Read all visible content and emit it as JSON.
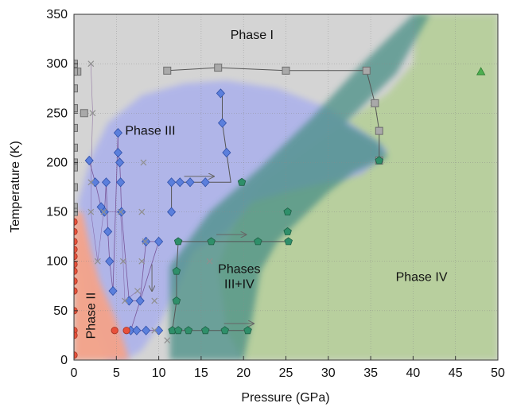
{
  "chart_data": {
    "type": "scatter",
    "xlabel": "Pressure (GPa)",
    "ylabel": "Temperature (K)",
    "xlim": [
      0,
      50
    ],
    "ylim": [
      0,
      350
    ],
    "xticks": [
      "0",
      "5",
      "10",
      "15",
      "20",
      "25",
      "30",
      "35",
      "40",
      "45",
      "50"
    ],
    "yticks": [
      "0",
      "50",
      "100",
      "150",
      "200",
      "250",
      "300",
      "350"
    ],
    "grid": true,
    "regions": [
      {
        "name": "Phase I",
        "color": "#d3d3d3",
        "label_x": 21,
        "label_y": 325
      },
      {
        "name": "Phase III",
        "color": "#aab0ec",
        "label_x": 9,
        "label_y": 228
      },
      {
        "name": "Phase II",
        "color": "#f4a38a",
        "label_x": 2.5,
        "label_y": 45
      },
      {
        "name": "Phases\nIII+IV",
        "color": "#4a8f86",
        "label_x": 19.5,
        "label_y": 88
      },
      {
        "name": "Phase IV",
        "color": "#b7cf9c",
        "label_x": 41,
        "label_y": 80
      }
    ],
    "arrows": [
      {
        "x1": 13,
        "y1": 186,
        "x2": 16.5,
        "y2": 186
      },
      {
        "x1": 16.8,
        "y1": 127,
        "x2": 20.3,
        "y2": 127
      },
      {
        "x1": 17.7,
        "y1": 37,
        "x2": 21.2,
        "y2": 37
      },
      {
        "x1": 9.2,
        "y1": 97,
        "x2": 9.2,
        "y2": 70
      }
    ],
    "series": [
      {
        "marker": "square-gray",
        "color": "#999999",
        "points": [
          [
            0,
            300
          ],
          [
            0.4,
            292
          ],
          [
            0,
            292
          ],
          [
            0,
            275
          ],
          [
            0,
            255
          ],
          [
            0,
            235
          ],
          [
            0,
            215
          ],
          [
            0,
            200
          ],
          [
            0,
            195
          ],
          [
            0,
            175
          ],
          [
            0,
            155
          ],
          [
            0,
            150
          ],
          [
            1.2,
            250
          ],
          [
            11,
            293
          ],
          [
            17,
            296
          ],
          [
            25,
            293
          ],
          [
            34.5,
            293
          ],
          [
            35.5,
            260
          ],
          [
            36,
            232
          ],
          [
            36,
            202
          ]
        ],
        "path": [
          [
            11,
            293
          ],
          [
            17,
            296
          ],
          [
            25,
            293
          ],
          [
            34.5,
            293
          ],
          [
            35.5,
            260
          ],
          [
            36,
            232
          ],
          [
            36,
            202
          ]
        ]
      },
      {
        "marker": "diamond-blue",
        "color": "#5b7fdc",
        "points": [
          [
            1.8,
            202
          ],
          [
            2.5,
            180
          ],
          [
            3.2,
            155
          ],
          [
            3.6,
            150
          ],
          [
            3.8,
            180
          ],
          [
            4,
            130
          ],
          [
            4.2,
            100
          ],
          [
            4.6,
            70
          ],
          [
            5.2,
            230
          ],
          [
            5.2,
            210
          ],
          [
            5.4,
            200
          ],
          [
            5.5,
            180
          ],
          [
            5.6,
            150
          ],
          [
            6.5,
            60
          ],
          [
            7.8,
            60
          ],
          [
            8.5,
            120
          ],
          [
            10,
            120
          ],
          [
            11.5,
            180
          ],
          [
            12.5,
            180
          ],
          [
            13.7,
            180
          ],
          [
            15.5,
            180
          ],
          [
            17.3,
            270
          ],
          [
            17.5,
            240
          ],
          [
            18,
            210
          ],
          [
            11.5,
            150
          ],
          [
            6.7,
            30
          ],
          [
            7.4,
            30
          ],
          [
            8.5,
            30
          ],
          [
            10,
            30
          ]
        ],
        "path": [
          [
            17.5,
            270
          ],
          [
            17.5,
            240
          ],
          [
            18,
            210
          ],
          [
            18.5,
            180
          ],
          [
            15.5,
            180
          ],
          [
            13.7,
            180
          ],
          [
            12.5,
            180
          ],
          [
            11.5,
            180
          ],
          [
            11.5,
            150
          ]
        ]
      },
      {
        "marker": "pentagon-teal",
        "color": "#2f8f6a",
        "points": [
          [
            19.8,
            180
          ],
          [
            25.2,
            150
          ],
          [
            25.2,
            130
          ],
          [
            25.3,
            120
          ],
          [
            21.7,
            120
          ],
          [
            16.2,
            120
          ],
          [
            12.3,
            120
          ],
          [
            12.1,
            90
          ],
          [
            12.1,
            60
          ],
          [
            11.6,
            30
          ],
          [
            12.3,
            30
          ],
          [
            13.5,
            30
          ],
          [
            15.5,
            30
          ],
          [
            17.8,
            30
          ],
          [
            20.5,
            30
          ],
          [
            36,
            202
          ]
        ],
        "path": [
          [
            25.3,
            120
          ],
          [
            21.7,
            120
          ],
          [
            16.2,
            120
          ],
          [
            12.3,
            120
          ],
          [
            12.1,
            90
          ],
          [
            12.1,
            60
          ],
          [
            11.6,
            30
          ],
          [
            20.5,
            30
          ]
        ]
      },
      {
        "marker": "cross-gray",
        "color": "#999999",
        "points": [
          [
            2,
            300
          ],
          [
            2.2,
            250
          ],
          [
            2,
            180
          ],
          [
            2,
            150
          ],
          [
            2.8,
            100
          ],
          [
            3.5,
            150
          ],
          [
            5.5,
            150
          ],
          [
            5.8,
            100
          ],
          [
            6,
            60
          ],
          [
            7.5,
            70
          ],
          [
            8,
            150
          ],
          [
            8,
            100
          ],
          [
            8.2,
            200
          ],
          [
            8.4,
            120
          ],
          [
            9.5,
            60
          ],
          [
            9.5,
            30
          ],
          [
            11,
            20
          ],
          [
            16,
            100
          ]
        ]
      },
      {
        "marker": "circle-red",
        "color": "#e8503a",
        "points": [
          [
            0,
            140
          ],
          [
            0,
            130
          ],
          [
            0,
            120
          ],
          [
            0,
            112
          ],
          [
            0,
            105
          ],
          [
            0,
            97
          ],
          [
            0,
            90
          ],
          [
            0,
            80
          ],
          [
            0,
            70
          ],
          [
            0,
            50
          ],
          [
            0,
            30
          ],
          [
            0,
            25
          ],
          [
            0,
            5
          ],
          [
            4.8,
            30
          ],
          [
            6.2,
            30
          ]
        ]
      },
      {
        "marker": "triangle-green",
        "color": "#4caf50",
        "points": [
          [
            48,
            292
          ]
        ]
      }
    ]
  }
}
